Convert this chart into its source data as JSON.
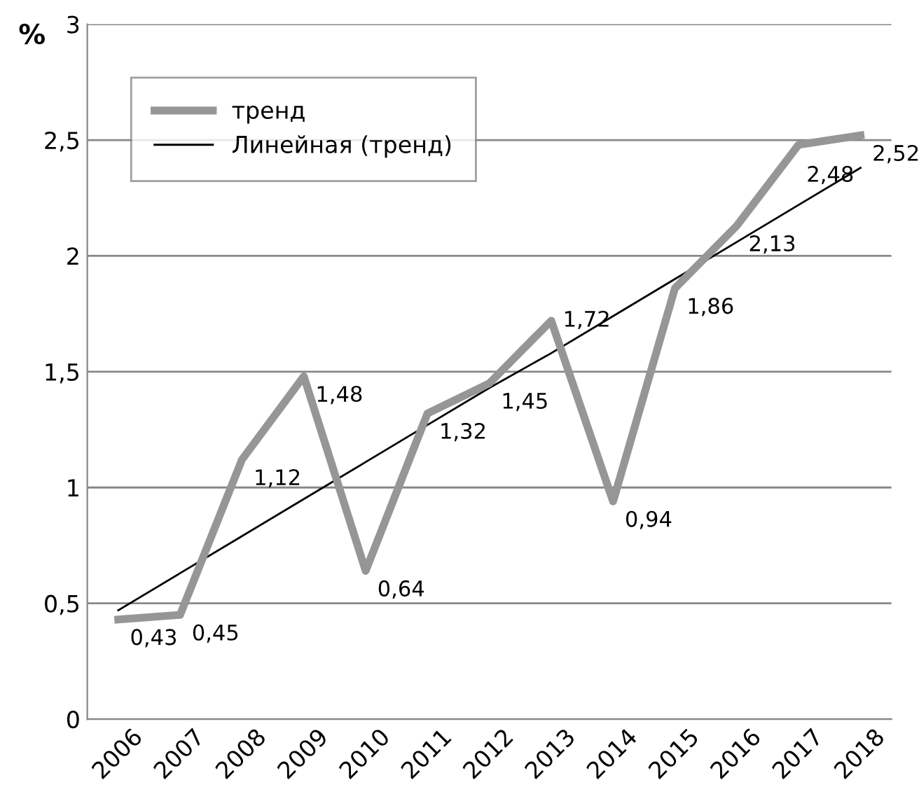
{
  "chart_data": {
    "type": "line",
    "ylabel": "%",
    "categories": [
      "2006",
      "2007",
      "2008",
      "2009",
      "2010",
      "2011",
      "2012",
      "2013",
      "2014",
      "2015",
      "2016",
      "2017",
      "2018"
    ],
    "series": [
      {
        "name": "тренд",
        "color": "#969696",
        "values": [
          0.43,
          0.45,
          1.12,
          1.48,
          0.64,
          1.32,
          1.45,
          1.72,
          0.94,
          1.86,
          2.13,
          2.48,
          2.52
        ],
        "value_labels": [
          "0,43",
          "0,45",
          "1,12",
          "1,48",
          "0,64",
          "1,32",
          "1,45",
          "1,72",
          "0,94",
          "1,86",
          "2,13",
          "2,48",
          "2,52"
        ]
      },
      {
        "name": "Линейная (тренд)",
        "color": "#000000",
        "values": [
          0.47,
          0.63,
          0.79,
          0.95,
          1.11,
          1.27,
          1.43,
          1.58,
          1.74,
          1.9,
          2.06,
          2.22,
          2.38
        ]
      }
    ],
    "ylim": [
      0,
      3
    ],
    "yticks": [
      0,
      {
        "value": 0.5,
        "label": "0,5"
      },
      1,
      {
        "value": 1.5,
        "label": "1,5"
      },
      2,
      {
        "value": 2.5,
        "label": "2,5"
      },
      3
    ],
    "grid": "y",
    "legend": "top left",
    "marker": "none",
    "line_style": "solid"
  }
}
